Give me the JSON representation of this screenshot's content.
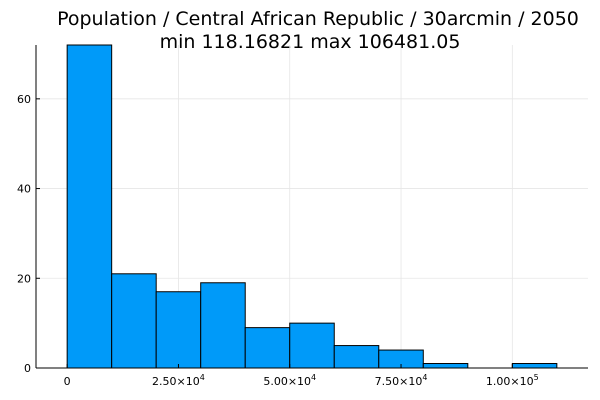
{
  "chart_data": {
    "type": "bar",
    "title": "Population / Central African Republic / 30arcmin / 2050",
    "subtitle": "min 118.16821  max 106481.05",
    "xlabel": "",
    "ylabel": "",
    "bin_width": 10000,
    "bins": [
      {
        "x0": 0,
        "x1": 10000,
        "count": 72
      },
      {
        "x0": 10000,
        "x1": 20000,
        "count": 21
      },
      {
        "x0": 20000,
        "x1": 30000,
        "count": 17
      },
      {
        "x0": 30000,
        "x1": 40000,
        "count": 19
      },
      {
        "x0": 40000,
        "x1": 50000,
        "count": 9
      },
      {
        "x0": 50000,
        "x1": 60000,
        "count": 10
      },
      {
        "x0": 60000,
        "x1": 70000,
        "count": 5
      },
      {
        "x0": 70000,
        "x1": 80000,
        "count": 4
      },
      {
        "x0": 80000,
        "x1": 90000,
        "count": 1
      },
      {
        "x0": 90000,
        "x1": 100000,
        "count": 0
      },
      {
        "x0": 100000,
        "x1": 110000,
        "count": 1
      }
    ],
    "xlim": [
      -7000,
      117000
    ],
    "ylim": [
      0,
      72
    ],
    "x_ticks": [
      {
        "value": 0,
        "mantissa": "0",
        "exponent": ""
      },
      {
        "value": 25000,
        "mantissa": "2.50×10",
        "exponent": "4"
      },
      {
        "value": 50000,
        "mantissa": "5.00×10",
        "exponent": "4"
      },
      {
        "value": 75000,
        "mantissa": "7.50×10",
        "exponent": "4"
      },
      {
        "value": 100000,
        "mantissa": "1.00×10",
        "exponent": "5"
      }
    ],
    "y_ticks": [
      0,
      20,
      40,
      60
    ],
    "grid": true,
    "legend": "none",
    "bar_color": "#009AF9",
    "bar_edge_color": "#000000"
  }
}
